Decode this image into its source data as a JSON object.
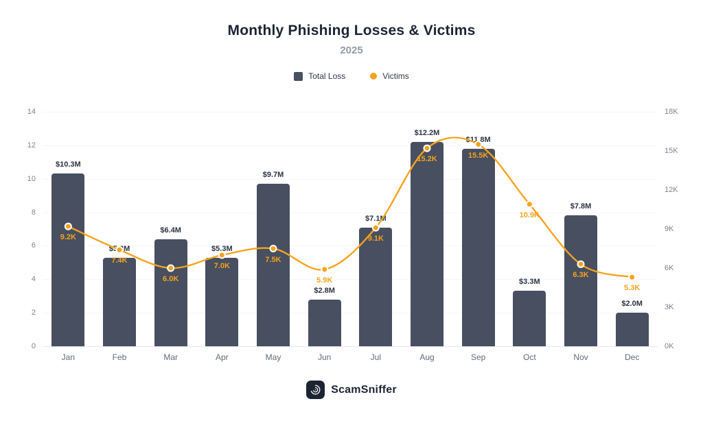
{
  "header": {
    "title": "Monthly Phishing Losses & Victims",
    "subtitle": "2025"
  },
  "legend": [
    {
      "label": "Total Loss",
      "color": "#474f60",
      "marker": "square"
    },
    {
      "label": "Victims",
      "color": "#f5a31d",
      "marker": "dot"
    }
  ],
  "footer": {
    "brand": "ScamSniffer"
  },
  "chart_data": {
    "type": "bar+line",
    "title": "Monthly Phishing Losses & Victims",
    "subtitle": "2025",
    "categories": [
      "Jan",
      "Feb",
      "Mar",
      "Apr",
      "May",
      "Jun",
      "Jul",
      "Aug",
      "Sep",
      "Oct",
      "Nov",
      "Dec"
    ],
    "series": [
      {
        "name": "Total Loss",
        "type": "bar",
        "axis": "left",
        "color": "#474f60",
        "values": [
          10.3,
          5.3,
          6.4,
          5.3,
          9.7,
          2.8,
          7.1,
          12.2,
          11.8,
          3.3,
          7.8,
          2.0
        ],
        "labels": [
          "$10.3M",
          "$5.3M",
          "$6.4M",
          "$5.3M",
          "$9.7M",
          "$2.8M",
          "$7.1M",
          "$12.2M",
          "$11.8M",
          "$3.3M",
          "$7.8M",
          "$2.0M"
        ]
      },
      {
        "name": "Victims",
        "type": "line",
        "axis": "right",
        "color": "#f5a31d",
        "values": [
          9.2,
          7.4,
          6.0,
          7.0,
          7.5,
          5.9,
          9.1,
          15.2,
          15.5,
          10.9,
          6.3,
          5.3
        ],
        "labels": [
          "9.2K",
          "7.4K",
          "6.0K",
          "7.0K",
          "7.5K",
          "5.9K",
          "9.1K",
          "15.2K",
          "15.5K",
          "10.9K",
          "6.3K",
          "5.3K"
        ]
      }
    ],
    "left_axis": {
      "min": 0,
      "max": 14,
      "ticks": [
        0,
        2,
        4,
        6,
        8,
        10,
        12,
        14
      ],
      "suffix": ""
    },
    "right_axis": {
      "min": 0,
      "max": 18,
      "ticks": [
        0,
        3,
        6,
        9,
        12,
        15,
        18
      ],
      "suffix": "K"
    },
    "legend_position": "top",
    "grid": false
  }
}
